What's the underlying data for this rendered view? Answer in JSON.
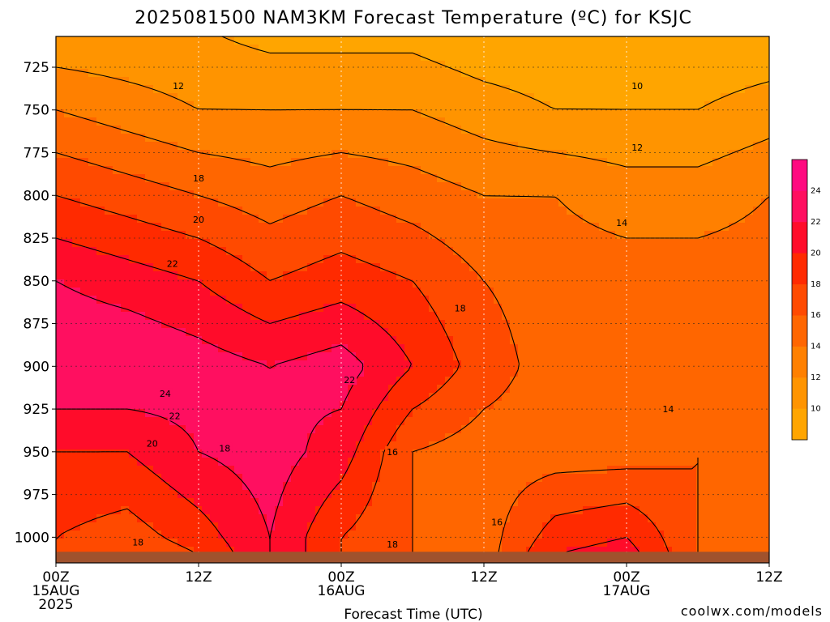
{
  "title": "2025081500 NAM3KM Forecast Temperature (ºC) for KSJC",
  "credit": "coolwx.com/models",
  "colors": {
    "b8": "#FFA500",
    "b10": "#FF9400",
    "b12": "#FF8000",
    "b14": "#FF6600",
    "b16": "#FF4A00",
    "b18": "#FF2A00",
    "b20": "#FF0C2A",
    "b22": "#FF0F60",
    "b24": "#FF0A80",
    "b26": "#FF1090",
    "ground": "#A0522D",
    "contour": "#000000",
    "grid": "#b8b8b8"
  },
  "chart_data": {
    "type": "heatmap",
    "title": "2025081500 NAM3KM Forecast Temperature (ºC) for KSJC",
    "xlabel": "Forecast Time (UTC)",
    "ylabel": "",
    "x_hours": [
      0,
      6,
      12,
      18,
      24,
      30,
      36,
      42,
      48,
      54,
      60
    ],
    "xlim": [
      0,
      60
    ],
    "x_ticks": [
      {
        "hour": 0,
        "lines": [
          "00Z",
          "15AUG",
          "2025"
        ]
      },
      {
        "hour": 12,
        "lines": [
          "12Z"
        ]
      },
      {
        "hour": 24,
        "lines": [
          "00Z",
          "16AUG"
        ]
      },
      {
        "hour": 36,
        "lines": [
          "12Z"
        ]
      },
      {
        "hour": 48,
        "lines": [
          "00Z",
          "17AUG"
        ]
      },
      {
        "hour": 60,
        "lines": [
          "12Z"
        ]
      }
    ],
    "y_levels_hpa": [
      700,
      750,
      800,
      850,
      900,
      950,
      1000,
      1010
    ],
    "ylim": [
      707,
      1015
    ],
    "y_ticks": [
      "725",
      "750",
      "775",
      "800",
      "825",
      "850",
      "875",
      "900",
      "925",
      "950",
      "975",
      "1000"
    ],
    "temperature_c": [
      [
        10,
        10,
        10,
        9,
        9,
        9,
        8,
        8,
        8,
        8,
        8
      ],
      [
        14,
        13,
        12,
        12,
        12,
        12,
        11,
        10,
        10,
        10,
        11
      ],
      [
        18,
        17,
        16,
        15,
        16,
        15,
        14,
        14,
        13,
        13,
        14
      ],
      [
        22,
        21,
        20,
        18,
        19,
        18,
        16,
        15,
        15,
        15,
        15
      ],
      [
        24,
        24,
        23,
        22,
        23,
        20,
        17,
        15,
        15,
        15,
        15
      ],
      [
        20,
        20,
        22,
        23,
        21,
        16,
        15,
        15,
        15,
        16,
        15
      ],
      [
        18,
        17,
        19,
        22,
        18,
        16,
        15,
        19,
        20,
        16,
        15
      ],
      [
        18,
        16,
        18,
        22,
        18,
        16,
        15,
        20,
        21,
        16,
        15
      ]
    ],
    "contour_levels": [
      10,
      12,
      14,
      16,
      18,
      20,
      22,
      24
    ],
    "contour_labels": [
      {
        "text": "12",
        "hour": 10.3,
        "hpa": 736
      },
      {
        "text": "10",
        "hour": 48.9,
        "hpa": 736
      },
      {
        "text": "12",
        "hour": 48.9,
        "hpa": 772
      },
      {
        "text": "14",
        "hour": 47.6,
        "hpa": 816
      },
      {
        "text": "18",
        "hour": 12.0,
        "hpa": 790
      },
      {
        "text": "20",
        "hour": 12.0,
        "hpa": 814
      },
      {
        "text": "22",
        "hour": 9.8,
        "hpa": 840
      },
      {
        "text": "18",
        "hour": 34.0,
        "hpa": 866
      },
      {
        "text": "24",
        "hour": 9.2,
        "hpa": 916
      },
      {
        "text": "22",
        "hour": 24.7,
        "hpa": 908
      },
      {
        "text": "22",
        "hour": 10.0,
        "hpa": 929
      },
      {
        "text": "20",
        "hour": 8.1,
        "hpa": 945
      },
      {
        "text": "18",
        "hour": 14.2,
        "hpa": 948
      },
      {
        "text": "16",
        "hour": 28.3,
        "hpa": 950
      },
      {
        "text": "14",
        "hour": 51.5,
        "hpa": 925
      },
      {
        "text": "16",
        "hour": 37.1,
        "hpa": 991
      },
      {
        "text": "18",
        "hour": 6.9,
        "hpa": 1003
      },
      {
        "text": "18",
        "hour": 28.3,
        "hpa": 1004
      }
    ],
    "colorbar": {
      "bounds": [
        8,
        10,
        12,
        14,
        16,
        18,
        20,
        22,
        24,
        26
      ],
      "labels": [
        "10",
        "12",
        "14",
        "16",
        "18",
        "20",
        "22",
        "24"
      ]
    }
  }
}
